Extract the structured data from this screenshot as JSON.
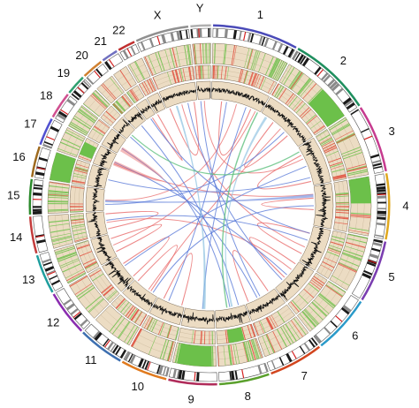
{
  "chromosomes": [
    {
      "label": "1",
      "size": 249,
      "color": "#4a4ab8"
    },
    {
      "label": "2",
      "size": 243,
      "color": "#1f8f5f"
    },
    {
      "label": "3",
      "size": 198,
      "color": "#c63b8f"
    },
    {
      "label": "4",
      "size": 191,
      "color": "#e0a81e"
    },
    {
      "label": "5",
      "size": 181,
      "color": "#7a3db0"
    },
    {
      "label": "6",
      "size": 171,
      "color": "#2a9ac9"
    },
    {
      "label": "7",
      "size": 159,
      "color": "#d2451e"
    },
    {
      "label": "8",
      "size": 146,
      "color": "#5aa02c"
    },
    {
      "label": "9",
      "size": 141,
      "color": "#b02c5a"
    },
    {
      "label": "10",
      "size": 136,
      "color": "#e07a1e"
    },
    {
      "label": "11",
      "size": 135,
      "color": "#3d6fb0"
    },
    {
      "label": "12",
      "size": 133,
      "color": "#8a2cb0"
    },
    {
      "label": "13",
      "size": 115,
      "color": "#1e9e9e"
    },
    {
      "label": "14",
      "size": 107,
      "color": "#c43c3c"
    },
    {
      "label": "15",
      "size": 102,
      "color": "#2c8a2c"
    },
    {
      "label": "16",
      "size": 90,
      "color": "#9e6a1e"
    },
    {
      "label": "17",
      "size": 81,
      "color": "#5050d0"
    },
    {
      "label": "18",
      "size": 78,
      "color": "#d05090"
    },
    {
      "label": "19",
      "size": 59,
      "color": "#30a070"
    },
    {
      "label": "20",
      "size": 63,
      "color": "#d08030"
    },
    {
      "label": "21",
      "size": 48,
      "color": "#7070c0"
    },
    {
      "label": "22",
      "size": 51,
      "color": "#c03030"
    },
    {
      "label": "X",
      "size": 155,
      "color": "#909090"
    },
    {
      "label": "Y",
      "size": 59,
      "color": "#b0b0b0"
    }
  ],
  "track_colors": {
    "band_dark": "#1a1a1a",
    "band_mid": "#8a8a8a",
    "centromere": "#d42020",
    "gain": "#6cc04a",
    "loss": "#e04a3a",
    "track_bg": "#ecdcc3",
    "coverage_line": "#111111",
    "link_intra": "#e86a6a",
    "link_inter": "#5a7ad8",
    "link_light": "#8cc0e0",
    "link_green": "#60c080"
  }
}
